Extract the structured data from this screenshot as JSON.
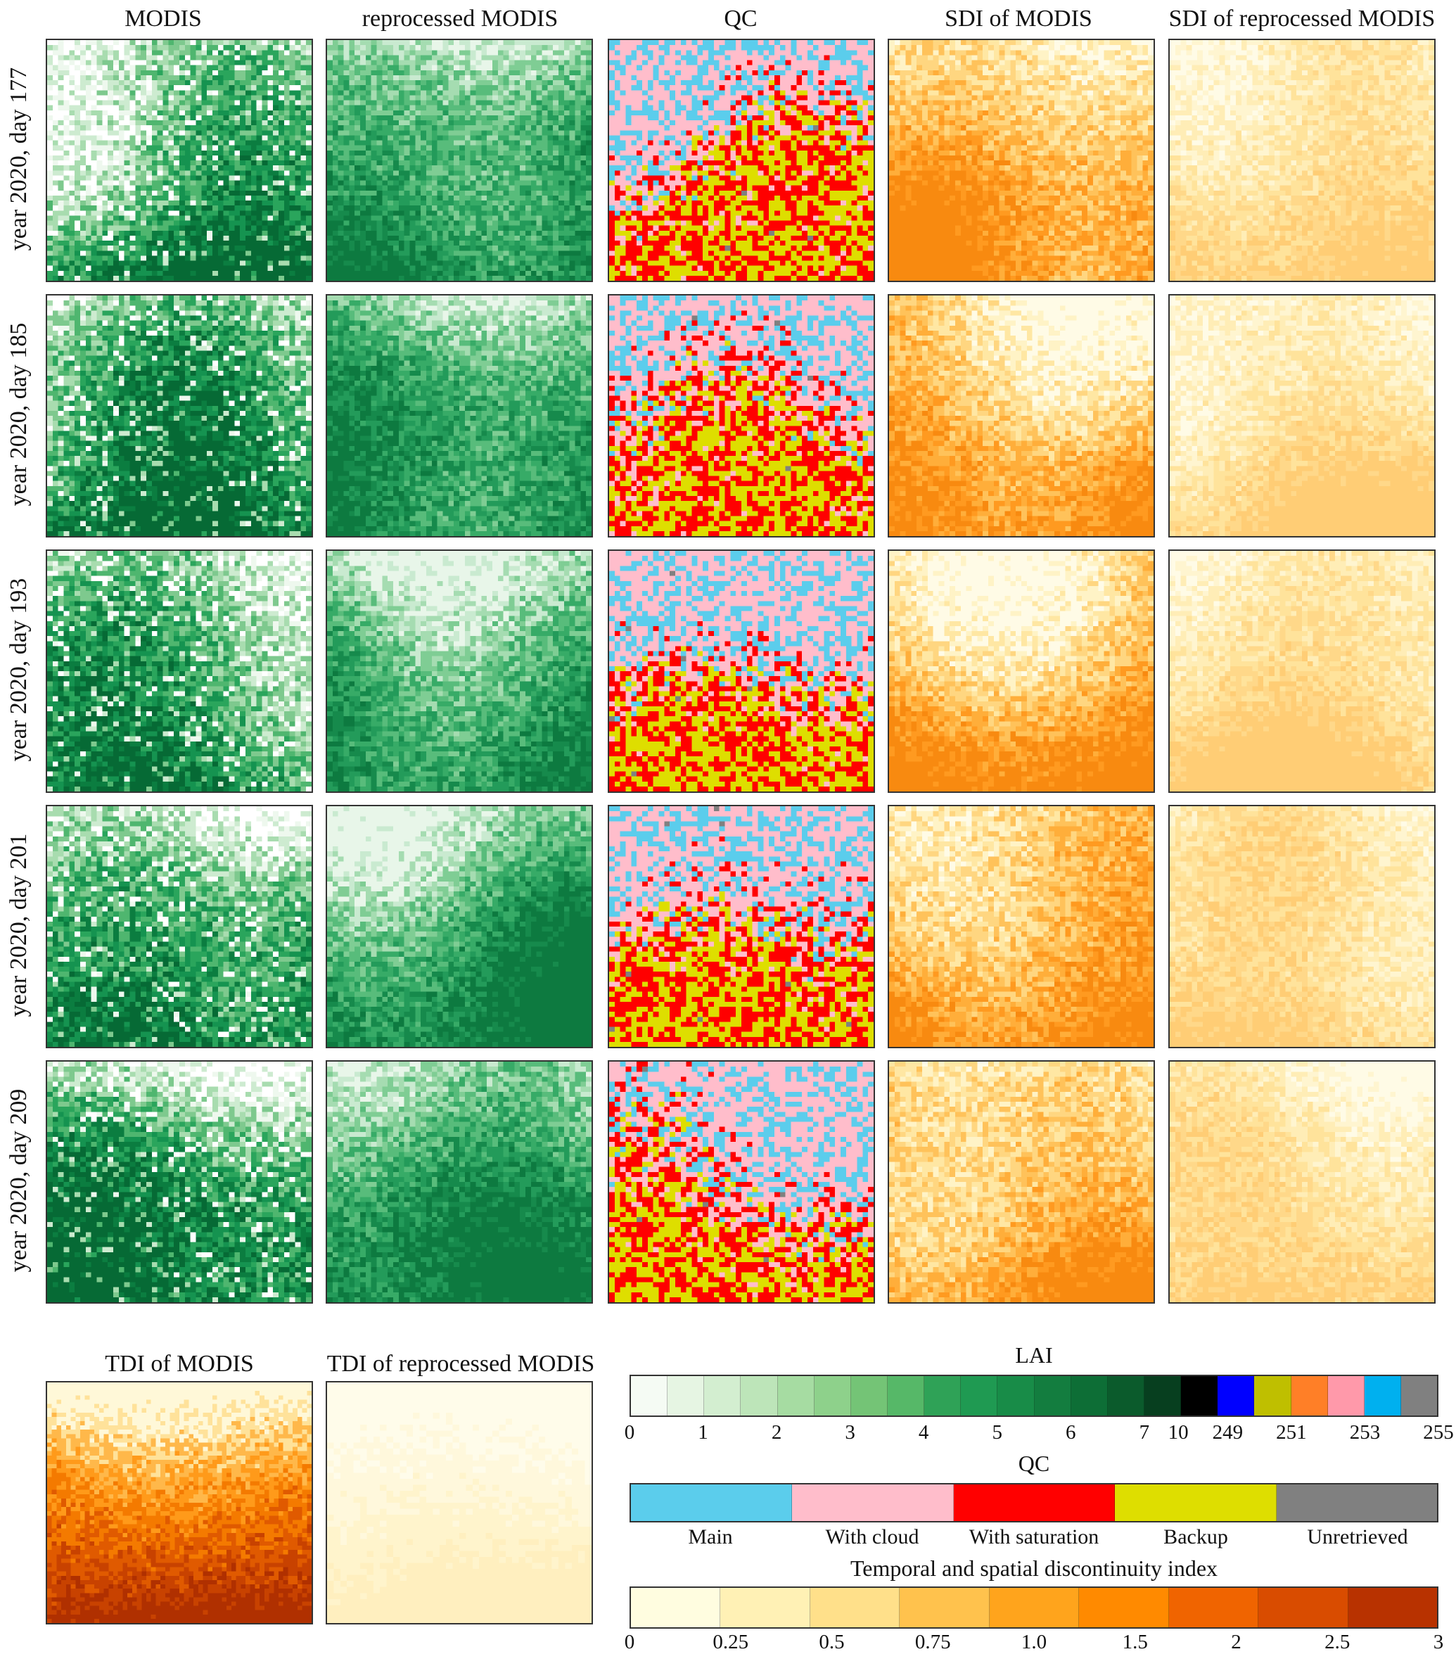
{
  "columns": [
    "MODIS",
    "reprocessed MODIS",
    "QC",
    "SDI of MODIS",
    "SDI of reprocessed MODIS"
  ],
  "rows": [
    "year 2020, day 177",
    "year 2020, day 185",
    "year 2020, day 193",
    "year 2020, day 201",
    "year 2020, day 209"
  ],
  "tdi_titles": [
    "TDI of MODIS",
    "TDI of reprocessed MODIS"
  ],
  "legend_lai": {
    "title": "LAI",
    "colors": [
      "#f5fbf4",
      "#e6f5e3",
      "#d3eed0",
      "#bde5b9",
      "#a6dca2",
      "#8ed18b",
      "#74c476",
      "#56b868",
      "#2fa257",
      "#1f9a52",
      "#188c48",
      "#137d3f",
      "#0d6e36",
      "#0b5b2c",
      "#073f1f",
      "#000000",
      "#0000ff",
      "#bfbf00",
      "#ff7f27",
      "#ff99aa",
      "#00b0ef",
      "#808080"
    ],
    "ticks": [
      "0",
      "1",
      "2",
      "3",
      "4",
      "5",
      "6",
      "7",
      "10",
      "249",
      "251",
      "253",
      "255"
    ]
  },
  "legend_qc": {
    "title": "QC",
    "colors": [
      "#5bcdec",
      "#ffbdcb",
      "#ff0000",
      "#dede00",
      "#808080"
    ],
    "labels": [
      "Main",
      "With cloud",
      "With saturation",
      "Backup",
      "Unretrieved"
    ]
  },
  "legend_index": {
    "title": "Temporal and spatial discontinuity index",
    "colors": [
      "#fffde0",
      "#fff1b5",
      "#ffe08a",
      "#ffc24d",
      "#ffa41c",
      "#ff8a00",
      "#f06400",
      "#d94c00",
      "#b83200"
    ],
    "ticks": [
      "0",
      "0.25",
      "0.5",
      "0.75",
      "1.0",
      "1.5",
      "2",
      "2.5",
      "3"
    ]
  },
  "panel_palettes": {
    "modis": [
      "#ffffff",
      "#eef8ee",
      "#cdebd0",
      "#a8dcaf",
      "#7ec98e",
      "#4fb66f",
      "#2aa55c",
      "#159350",
      "#0b7d40",
      "#066a35"
    ],
    "reprocessed": [
      "#e8f6e9",
      "#c9ead0",
      "#a5dcb1",
      "#7fcd94",
      "#58bc7b",
      "#37ab67",
      "#239b5a",
      "#168a4c",
      "#0d7a40"
    ],
    "qc": [
      "#ffbdcb",
      "#5bcdec",
      "#ff0000",
      "#dede00",
      "#808080"
    ],
    "sdi": [
      "#fffbe6",
      "#fff3c6",
      "#ffe7a3",
      "#ffd680",
      "#ffc25a",
      "#ffae3a",
      "#ff9a20",
      "#f88a10"
    ],
    "sdi_re": [
      "#fffbe6",
      "#fff5d0",
      "#ffedb6",
      "#ffe39b",
      "#ffd889",
      "#ffcd75"
    ],
    "tdi": [
      "#fff8d8",
      "#ffe29a",
      "#ffb84a",
      "#ff9a1a",
      "#f47a00",
      "#e05a00",
      "#c84200",
      "#b03000"
    ],
    "tdi_re": [
      "#fffcea",
      "#fff8dc",
      "#fff4cc",
      "#ffefbf"
    ]
  }
}
